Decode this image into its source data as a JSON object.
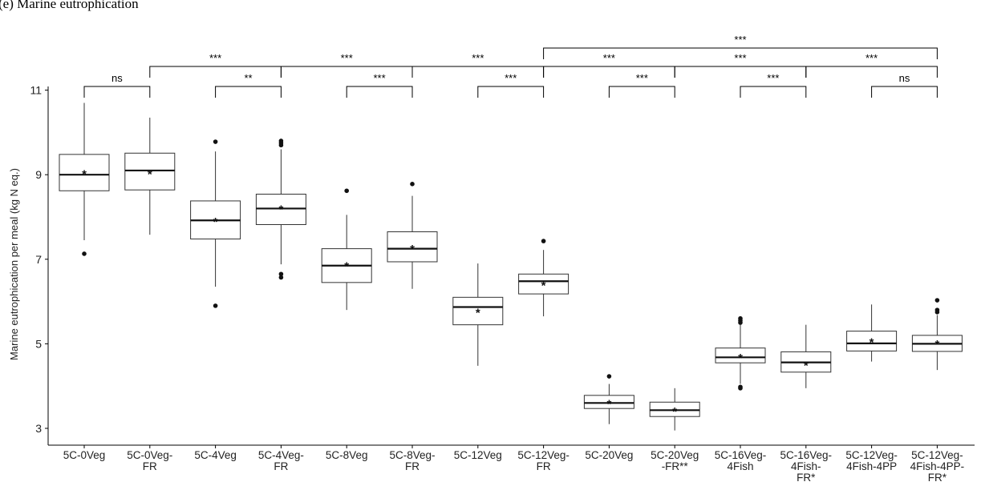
{
  "chart_data": {
    "type": "box",
    "title": "(e) Marine eutrophication",
    "xlabel": "",
    "ylabel": "Marine eutrophication per meal (kg N eq.)",
    "ylim": [
      2.7,
      11.2
    ],
    "yticks": [
      3,
      5,
      7,
      9,
      11
    ],
    "grid": false,
    "categories": [
      [
        "5C-0Veg"
      ],
      [
        "5C-0Veg-",
        "FR"
      ],
      [
        "5C-4Veg"
      ],
      [
        "5C-4Veg-",
        "FR"
      ],
      [
        "5C-8Veg"
      ],
      [
        "5C-8Veg-",
        "FR"
      ],
      [
        "5C-12Veg"
      ],
      [
        "5C-12Veg-",
        "FR"
      ],
      [
        "5C-20Veg"
      ],
      [
        "5C-20Veg",
        "-FR**"
      ],
      [
        "5C-16Veg-",
        "4Fish"
      ],
      [
        "5C-16Veg-",
        "4Fish-",
        "FR*"
      ],
      [
        "5C-12Veg-",
        "4Fish-4PP"
      ],
      [
        "5C-12Veg-",
        "4Fish-4PP-",
        "FR*"
      ]
    ],
    "boxes": [
      {
        "q1": 8.62,
        "median": 9.0,
        "q3": 9.48,
        "lower": 7.45,
        "upper": 10.7,
        "mean": 9.05,
        "outliers": [
          7.13
        ]
      },
      {
        "q1": 8.64,
        "median": 9.1,
        "q3": 9.51,
        "lower": 7.58,
        "upper": 10.35,
        "mean": 9.05,
        "outliers": []
      },
      {
        "q1": 7.48,
        "median": 7.92,
        "q3": 8.38,
        "lower": 6.35,
        "upper": 9.55,
        "mean": 7.92,
        "outliers": [
          9.78,
          5.9
        ]
      },
      {
        "q1": 7.82,
        "median": 8.2,
        "q3": 8.54,
        "lower": 6.88,
        "upper": 9.6,
        "mean": 8.22,
        "outliers": [
          9.8,
          9.75,
          9.7,
          6.65,
          6.57
        ]
      },
      {
        "q1": 6.45,
        "median": 6.85,
        "q3": 7.25,
        "lower": 5.8,
        "upper": 8.05,
        "mean": 6.87,
        "outliers": [
          8.62
        ]
      },
      {
        "q1": 6.94,
        "median": 7.25,
        "q3": 7.65,
        "lower": 6.3,
        "upper": 8.5,
        "mean": 7.28,
        "outliers": [
          8.78
        ]
      },
      {
        "q1": 5.45,
        "median": 5.87,
        "q3": 6.1,
        "lower": 4.48,
        "upper": 6.9,
        "mean": 5.77,
        "outliers": []
      },
      {
        "q1": 6.18,
        "median": 6.48,
        "q3": 6.65,
        "lower": 5.65,
        "upper": 7.22,
        "mean": 6.42,
        "outliers": [
          7.43
        ]
      },
      {
        "q1": 3.47,
        "median": 3.6,
        "q3": 3.78,
        "lower": 3.1,
        "upper": 4.05,
        "mean": 3.62,
        "outliers": [
          4.23
        ]
      },
      {
        "q1": 3.28,
        "median": 3.43,
        "q3": 3.62,
        "lower": 2.95,
        "upper": 3.95,
        "mean": 3.44,
        "outliers": []
      },
      {
        "q1": 4.55,
        "median": 4.68,
        "q3": 4.9,
        "lower": 4.05,
        "upper": 5.45,
        "mean": 4.7,
        "outliers": [
          5.6,
          5.55,
          5.5,
          3.98,
          3.95
        ]
      },
      {
        "q1": 4.33,
        "median": 4.56,
        "q3": 4.81,
        "lower": 3.95,
        "upper": 5.45,
        "mean": 4.52,
        "outliers": []
      },
      {
        "q1": 4.83,
        "median": 5.01,
        "q3": 5.3,
        "lower": 4.58,
        "upper": 5.93,
        "mean": 5.07,
        "outliers": []
      },
      {
        "q1": 4.82,
        "median": 5.0,
        "q3": 5.2,
        "lower": 4.38,
        "upper": 5.68,
        "mean": 5.03,
        "outliers": [
          6.03,
          5.8,
          5.75
        ]
      }
    ],
    "comparisons": [
      {
        "from": 0,
        "to": 1,
        "label": "ns",
        "level": 0
      },
      {
        "from": 2,
        "to": 3,
        "label": "**",
        "level": 0
      },
      {
        "from": 4,
        "to": 5,
        "label": "***",
        "level": 0
      },
      {
        "from": 6,
        "to": 7,
        "label": "***",
        "level": 0
      },
      {
        "from": 8,
        "to": 9,
        "label": "***",
        "level": 0
      },
      {
        "from": 10,
        "to": 11,
        "label": "***",
        "level": 0
      },
      {
        "from": 12,
        "to": 13,
        "label": "ns",
        "level": 0
      },
      {
        "from": 1,
        "to": 3,
        "label": "***",
        "level": 1
      },
      {
        "from": 3,
        "to": 5,
        "label": "***",
        "level": 1
      },
      {
        "from": 5,
        "to": 7,
        "label": "***",
        "level": 1
      },
      {
        "from": 7,
        "to": 9,
        "label": "***",
        "level": 1
      },
      {
        "from": 9,
        "to": 11,
        "label": "***",
        "level": 1
      },
      {
        "from": 11,
        "to": 13,
        "label": "***",
        "level": 1
      },
      {
        "from": 7,
        "to": 13,
        "label": "***",
        "level": 2
      }
    ]
  }
}
